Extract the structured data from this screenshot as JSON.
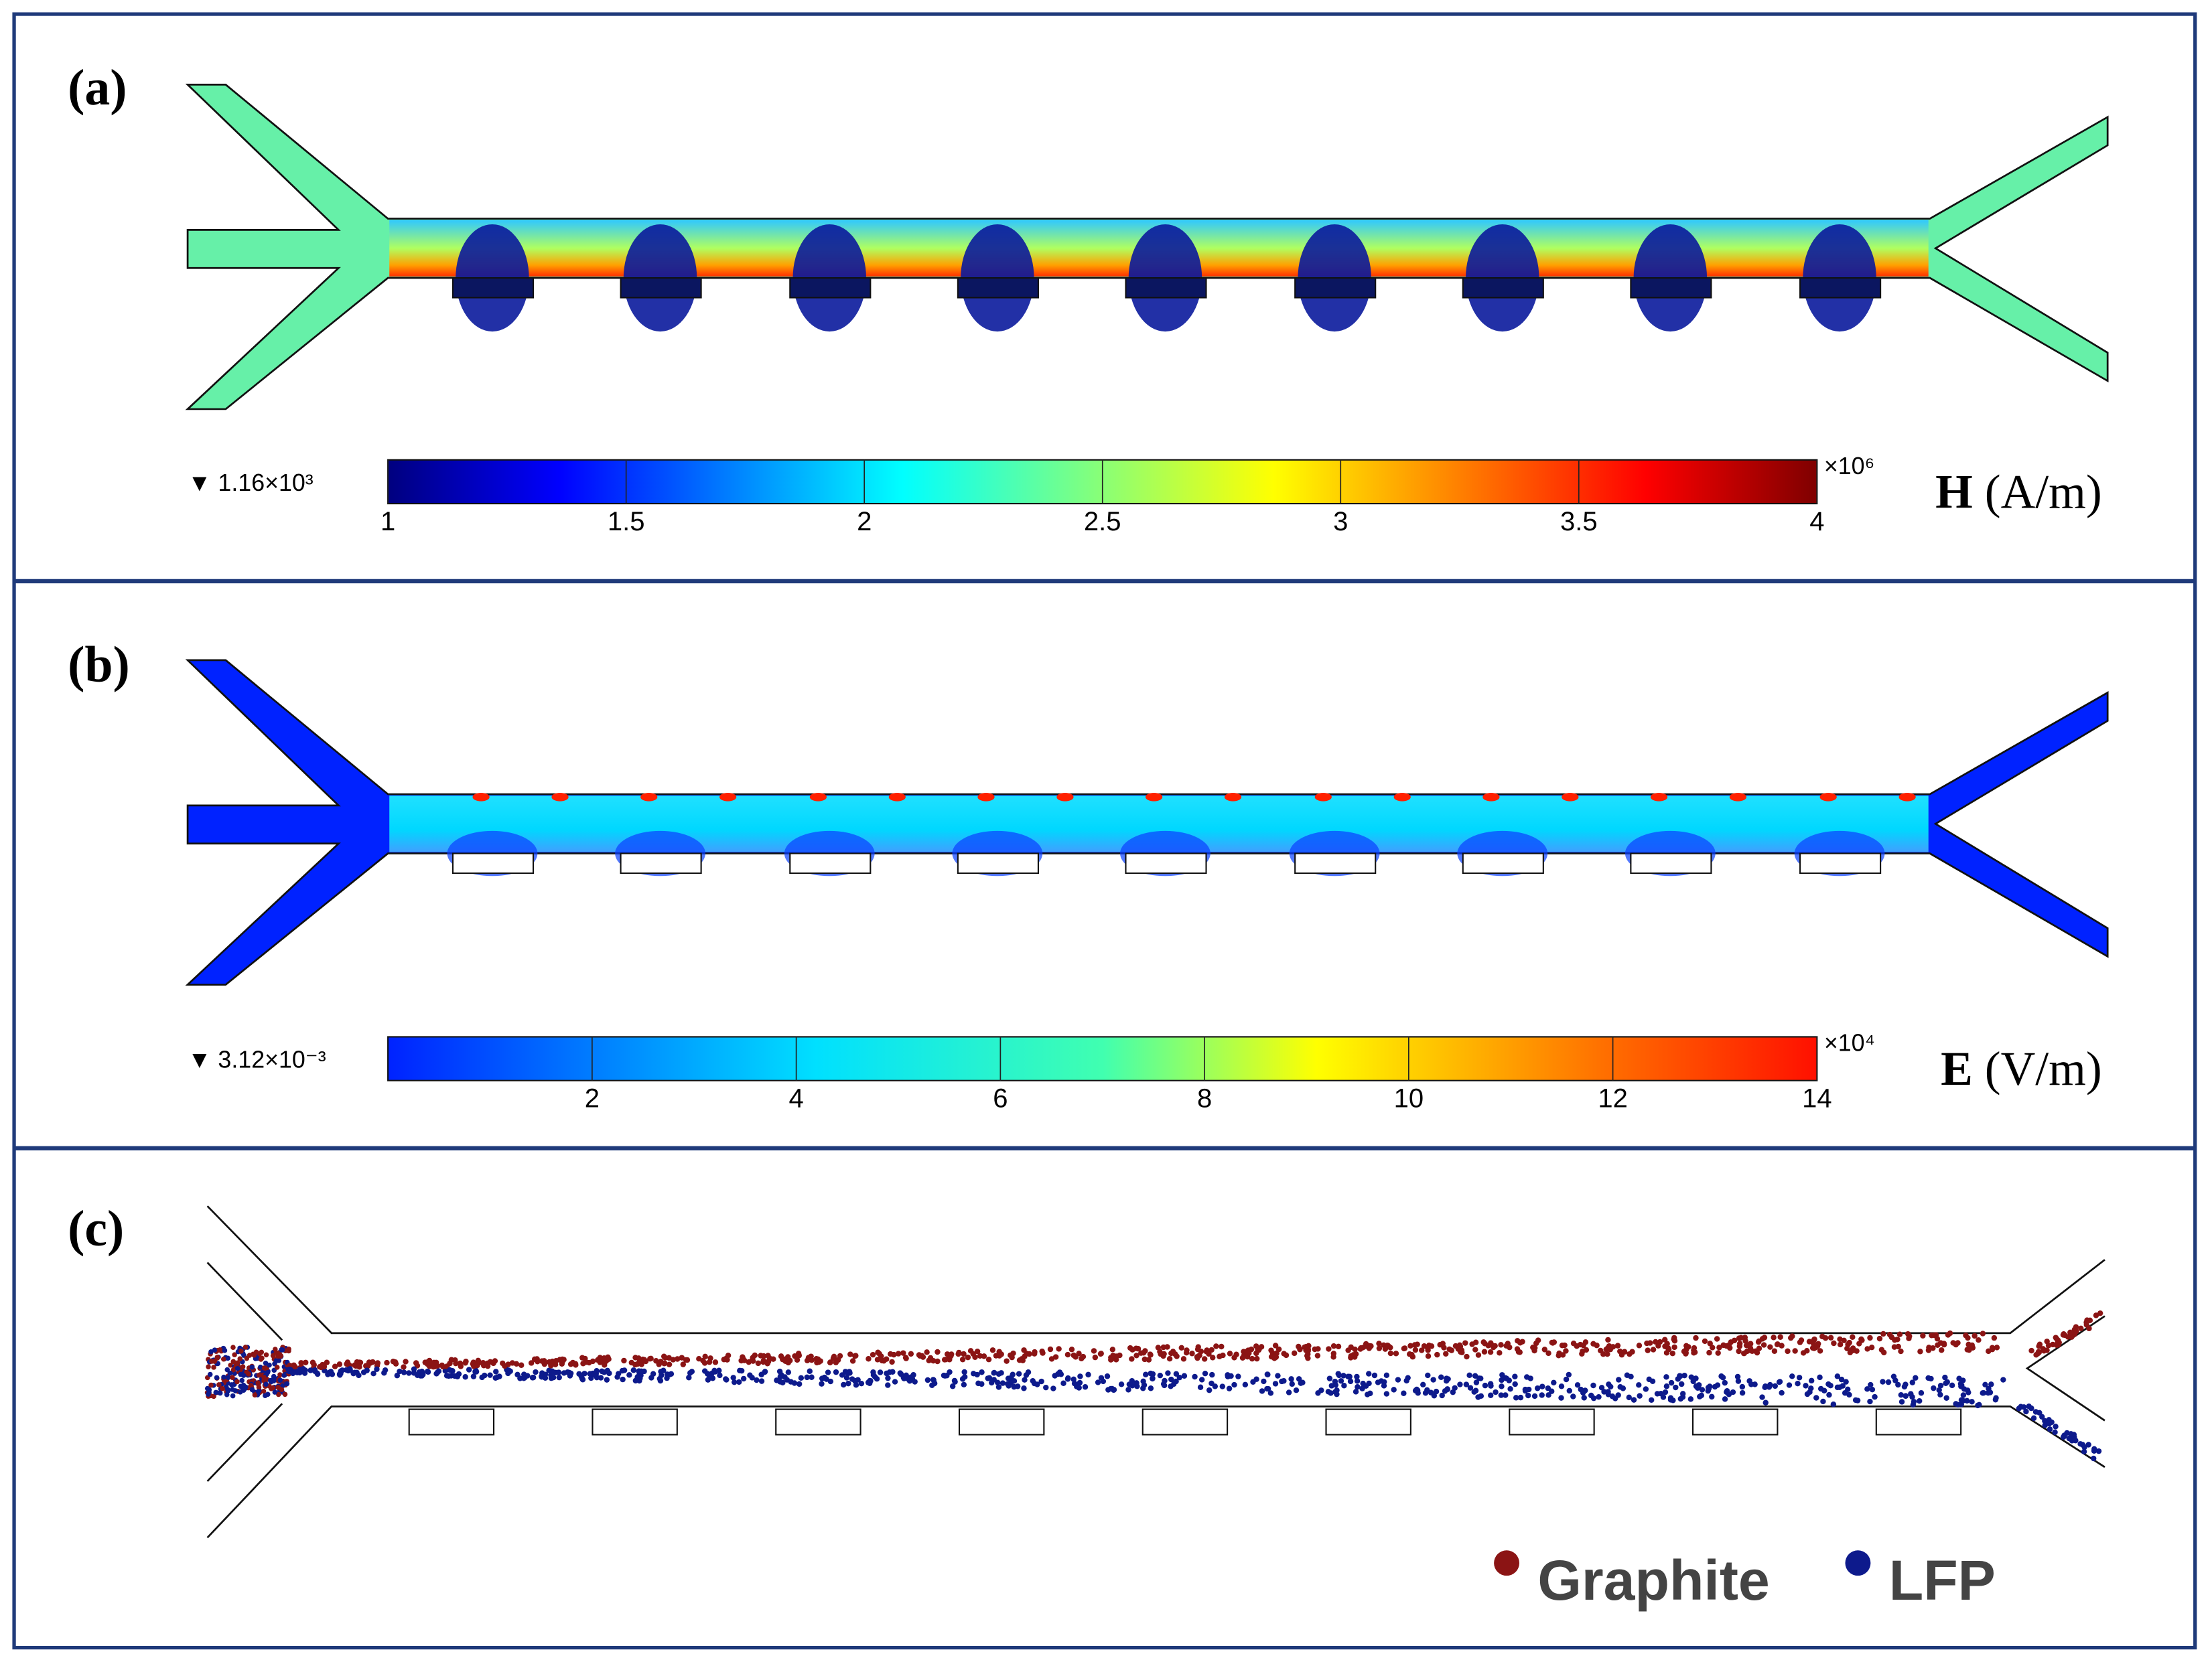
{
  "panels": [
    {
      "label": "(a)",
      "colorbar": {
        "min_label": "▼ 1.16×10³",
        "ticks": [
          "1",
          "1.5",
          "2",
          "2.5",
          "3",
          "3.5",
          "4"
        ],
        "multiplier": "×10⁶",
        "quantity": "H",
        "unit": "(A/m)"
      }
    },
    {
      "label": "(b)",
      "colorbar": {
        "min_label": "▼ 3.12×10⁻³",
        "ticks": [
          "2",
          "4",
          "6",
          "8",
          "10",
          "12",
          "14"
        ],
        "multiplier": "×10⁴",
        "quantity": "E",
        "unit": "(V/m)"
      }
    },
    {
      "label": "(c)",
      "legend": [
        {
          "name": "Graphite",
          "color": "#8b1414"
        },
        {
          "name": "LFP",
          "color": "#0d1a8c"
        }
      ]
    }
  ]
}
